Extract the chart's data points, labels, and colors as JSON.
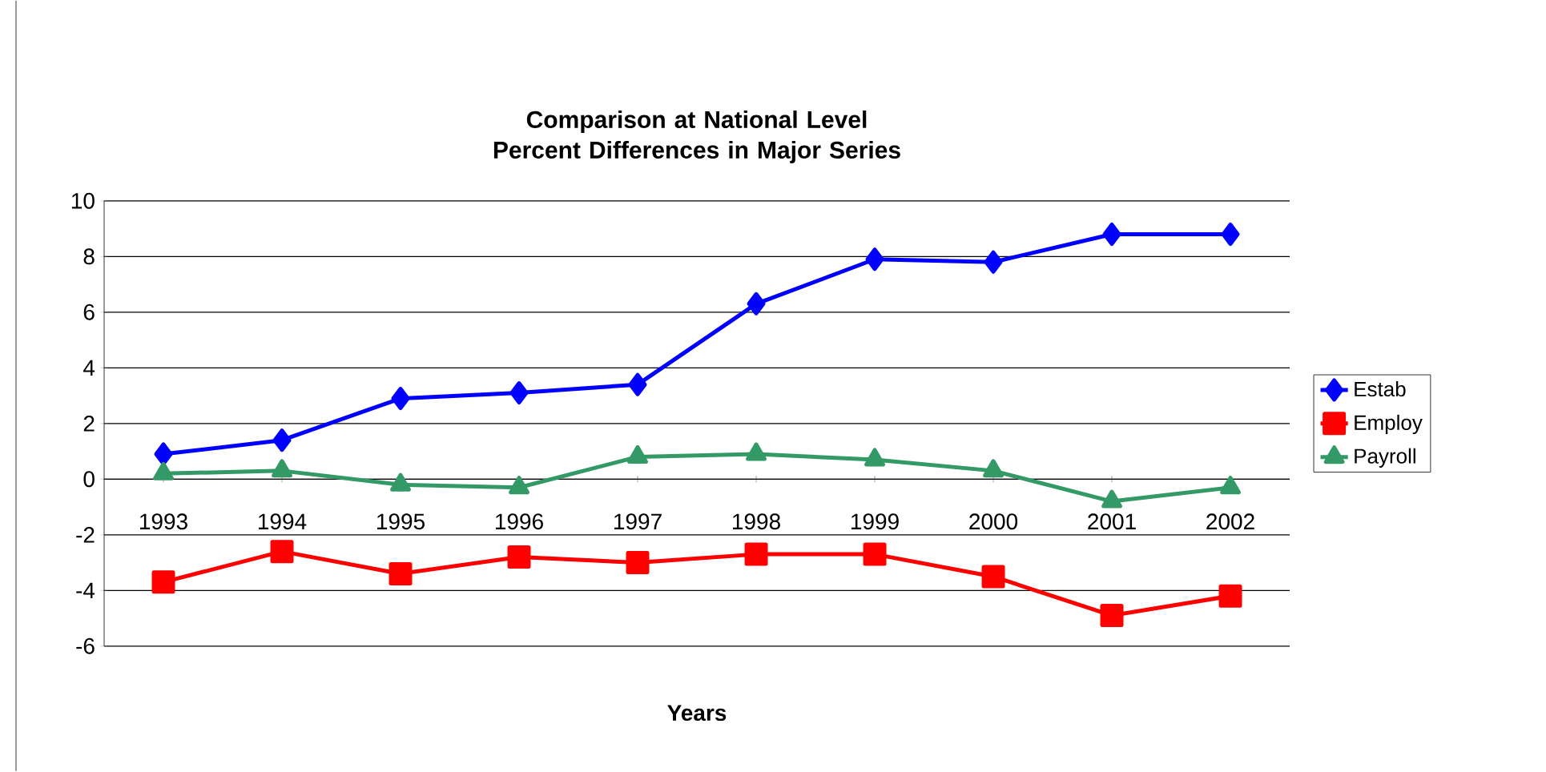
{
  "chart_data": {
    "type": "line",
    "title": "Comparison at National Level\nPercent Differences in Major Series",
    "xlabel": "Years",
    "categories": [
      "1993",
      "1994",
      "1995",
      "1996",
      "1997",
      "1998",
      "1999",
      "2000",
      "2001",
      "2002"
    ],
    "series": [
      {
        "name": "Estab",
        "color": "#0000ff",
        "marker": "diamond",
        "values": [
          0.9,
          1.4,
          2.9,
          3.1,
          3.4,
          6.3,
          7.9,
          7.8,
          8.8,
          8.8
        ]
      },
      {
        "name": "Employ",
        "color": "#ff0000",
        "marker": "square",
        "values": [
          -3.7,
          -2.6,
          -3.4,
          -2.8,
          -3.0,
          -2.7,
          -2.7,
          -3.5,
          -4.9,
          -4.2
        ]
      },
      {
        "name": "Payroll",
        "color": "#339966",
        "marker": "triangle",
        "values": [
          0.2,
          0.3,
          -0.2,
          -0.3,
          0.8,
          0.9,
          0.7,
          0.3,
          -0.8,
          -0.3
        ]
      }
    ],
    "ylim": [
      -6,
      10
    ],
    "yticks": [
      -6,
      -4,
      -2,
      0,
      2,
      4,
      6,
      8,
      10
    ],
    "grid": "y",
    "legend": "right"
  }
}
